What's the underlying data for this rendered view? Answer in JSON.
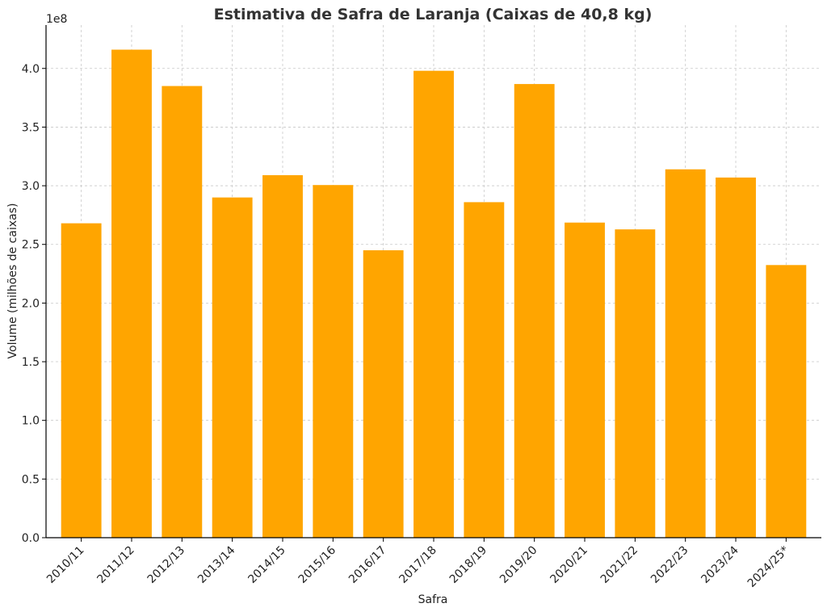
{
  "chart_data": {
    "type": "bar",
    "title": "Estimativa de Safra de Laranja (Caixas de 40,8 kg)",
    "xlabel": "Safra",
    "ylabel": "Volume (milhões de caixas)",
    "offset_label": "1e8",
    "categories": [
      "2010/11",
      "2011/12",
      "2012/13",
      "2013/14",
      "2014/15",
      "2015/16",
      "2016/17",
      "2017/18",
      "2018/19",
      "2019/20",
      "2020/21",
      "2021/22",
      "2022/23",
      "2023/24",
      "2024/25*"
    ],
    "values": [
      268000000,
      416000000,
      385000000,
      290000000,
      309000000,
      300600000,
      245000000,
      398000000,
      286000000,
      386700000,
      268600000,
      262800000,
      314000000,
      307000000,
      232400000
    ],
    "ylim": [
      0,
      437000000
    ],
    "yticks": [
      0,
      50000000,
      100000000,
      150000000,
      200000000,
      250000000,
      300000000,
      350000000,
      400000000
    ],
    "ytick_labels": [
      "0.0",
      "0.5",
      "1.0",
      "1.5",
      "2.0",
      "2.5",
      "3.0",
      "3.5",
      "4.0"
    ],
    "grid": true,
    "bar_color": "#ffa500"
  }
}
